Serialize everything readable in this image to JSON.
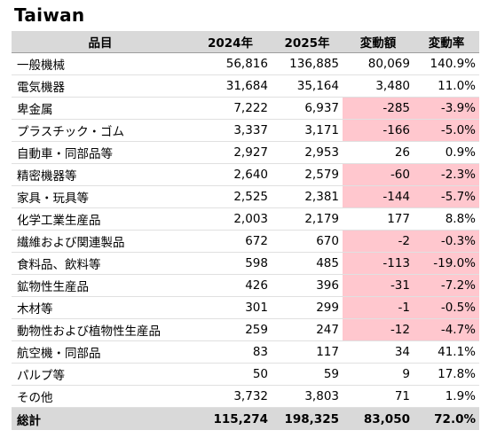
{
  "title": "Taiwan",
  "headers": [
    "品目",
    "2024年",
    "2025年",
    "変動額",
    "変動率"
  ],
  "rows": [
    {
      "name": "一般機械",
      "y2024": "56,816",
      "y2025": "136,885",
      "change": "80,069",
      "rate": "140.9%",
      "negative": false
    },
    {
      "name": "電気機器",
      "y2024": "31,684",
      "y2025": "35,164",
      "change": "3,480",
      "rate": "11.0%",
      "negative": false
    },
    {
      "name": "卑金属",
      "y2024": "7,222",
      "y2025": "6,937",
      "change": "-285",
      "rate": "-3.9%",
      "negative": true
    },
    {
      "name": "プラスチック・ゴム",
      "y2024": "3,337",
      "y2025": "3,171",
      "change": "-166",
      "rate": "-5.0%",
      "negative": true
    },
    {
      "name": "自動車・同部品等",
      "y2024": "2,927",
      "y2025": "2,953",
      "change": "26",
      "rate": "0.9%",
      "negative": false
    },
    {
      "name": "精密機器等",
      "y2024": "2,640",
      "y2025": "2,579",
      "change": "-60",
      "rate": "-2.3%",
      "negative": true
    },
    {
      "name": "家具・玩具等",
      "y2024": "2,525",
      "y2025": "2,381",
      "change": "-144",
      "rate": "-5.7%",
      "negative": true
    },
    {
      "name": "化学工業生産品",
      "y2024": "2,003",
      "y2025": "2,179",
      "change": "177",
      "rate": "8.8%",
      "negative": false
    },
    {
      "name": "繊維および関連製品",
      "y2024": "672",
      "y2025": "670",
      "change": "-2",
      "rate": "-0.3%",
      "negative": true
    },
    {
      "name": "食料品、飲料等",
      "y2024": "598",
      "y2025": "485",
      "change": "-113",
      "rate": "-19.0%",
      "negative": true
    },
    {
      "name": "鉱物性生産品",
      "y2024": "426",
      "y2025": "396",
      "change": "-31",
      "rate": "-7.2%",
      "negative": true
    },
    {
      "name": "木材等",
      "y2024": "301",
      "y2025": "299",
      "change": "-1",
      "rate": "-0.5%",
      "negative": true
    },
    {
      "name": "動物性および植物性生産品",
      "y2024": "259",
      "y2025": "247",
      "change": "-12",
      "rate": "-4.7%",
      "negative": true
    },
    {
      "name": "航空機・同部品",
      "y2024": "83",
      "y2025": "117",
      "change": "34",
      "rate": "41.1%",
      "negative": false
    },
    {
      "name": "パルプ等",
      "y2024": "50",
      "y2025": "59",
      "change": "9",
      "rate": "17.8%",
      "negative": false
    },
    {
      "name": "その他",
      "y2024": "3,732",
      "y2025": "3,803",
      "change": "71",
      "rate": "1.9%",
      "negative": false
    }
  ],
  "total": {
    "name": "総計",
    "y2024": "115,274",
    "y2025": "198,325",
    "change": "83,050",
    "rate": "72.0%"
  },
  "colors": {
    "header_bg": "#d9d9d9",
    "negative_bg": "#ffc7ce"
  }
}
